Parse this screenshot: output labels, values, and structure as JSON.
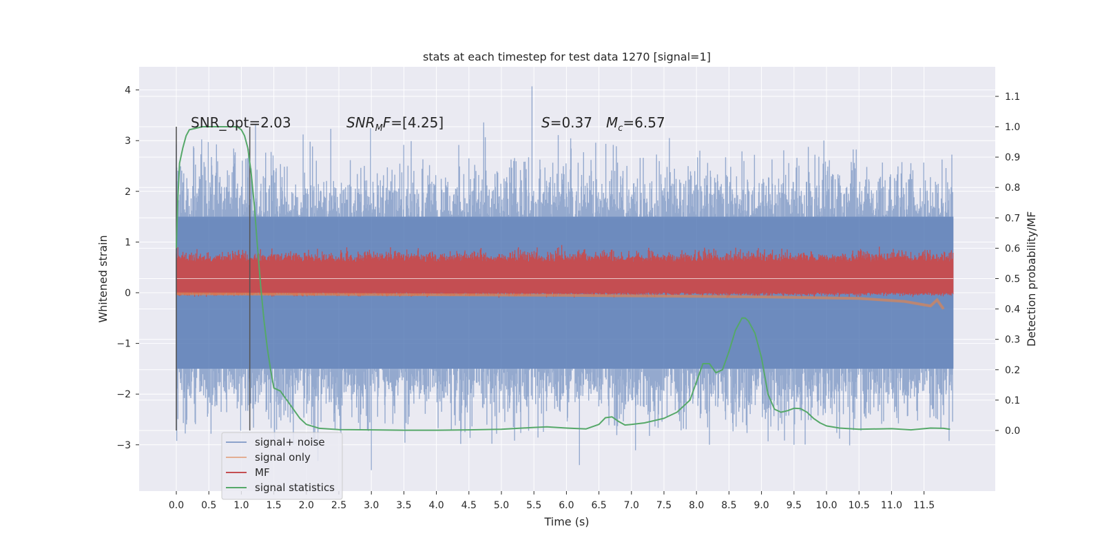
{
  "chart_data": {
    "type": "line",
    "title": "stats at each timestep for test data 1270 [signal=1]",
    "xlabel": "Time (s)",
    "ylabel_left": "Whitened strain",
    "ylabel_right": "Detection probability/MF",
    "xlim": [
      -0.5,
      12.7
    ],
    "ylim_left": [
      -3.9,
      4.4
    ],
    "ylim_right": [
      -0.2,
      1.15
    ],
    "x_ticks": [
      "0.0",
      "0.5",
      "1.0",
      "1.5",
      "2.0",
      "2.5",
      "3.0",
      "3.5",
      "4.0",
      "4.5",
      "5.0",
      "5.5",
      "6.0",
      "6.5",
      "7.0",
      "7.5",
      "8.0",
      "8.5",
      "9.0",
      "9.5",
      "10.0",
      "10.5",
      "11.0",
      "11.5"
    ],
    "y_ticks_left": [
      "4",
      "3",
      "2",
      "1",
      "0",
      "−1",
      "−2",
      "−3"
    ],
    "y_ticks_right": [
      "1.1",
      "1.0",
      "0.9",
      "0.8",
      "0.7",
      "0.6",
      "0.5",
      "0.4",
      "0.3",
      "0.2",
      "0.1",
      "0.0"
    ],
    "grid": true,
    "legend_position": "lower-left",
    "annotations": {
      "snr_opt": "SNR_opt=2.03",
      "snr_mf_prefix": "SNR",
      "snr_mf_sub": "M",
      "snr_mf_suffix": "F",
      "snr_mf_value": "=[4.25]",
      "s_label": "S",
      "s_value": "=0.37",
      "mc_label": "M",
      "mc_sub": "c",
      "mc_value": "=6.57"
    },
    "vertical_lines_x": [
      0.0,
      1.13
    ],
    "series": [
      {
        "name": "signal+ noise",
        "color": "#4c72b0",
        "axis": "left",
        "x_range": [
          0.0,
          11.95
        ],
        "band_core": [
          -1.5,
          1.5
        ],
        "notable_peaks": [
          [
            5.47,
            4.07
          ],
          [
            0.02,
            2.2
          ],
          [
            6.2,
            -3.4
          ],
          [
            3.0,
            -3.5
          ],
          [
            9.5,
            -3.0
          ],
          [
            8.2,
            -3.0
          ]
        ]
      },
      {
        "name": "signal only",
        "color": "#dd8452",
        "axis": "right",
        "x": [
          0.0,
          6.0,
          9.0,
          10.5,
          11.2,
          11.6,
          11.7,
          11.8
        ],
        "values": [
          0.45,
          0.445,
          0.44,
          0.435,
          0.425,
          0.41,
          0.43,
          0.4
        ]
      },
      {
        "name": "MF",
        "color": "#c44e52",
        "axis": "right",
        "x_range": [
          0.0,
          11.95
        ],
        "baseline": 0.5,
        "band": [
          0.455,
          0.585
        ]
      },
      {
        "name": "signal statistics",
        "color": "#55a868",
        "axis": "right",
        "x": [
          0.0,
          0.02,
          0.05,
          0.1,
          0.15,
          0.2,
          0.4,
          0.6,
          0.8,
          0.9,
          0.95,
          1.0,
          1.05,
          1.1,
          1.15,
          1.2,
          1.25,
          1.3,
          1.35,
          1.4,
          1.45,
          1.5,
          1.6,
          1.7,
          1.8,
          1.9,
          2.0,
          2.2,
          2.5,
          3.0,
          3.5,
          4.0,
          4.5,
          5.0,
          5.5,
          5.7,
          6.0,
          6.3,
          6.5,
          6.6,
          6.7,
          6.8,
          6.9,
          7.0,
          7.2,
          7.5,
          7.7,
          7.9,
          8.0,
          8.1,
          8.2,
          8.3,
          8.4,
          8.5,
          8.6,
          8.7,
          8.75,
          8.8,
          8.9,
          9.0,
          9.1,
          9.2,
          9.3,
          9.4,
          9.5,
          9.6,
          9.7,
          9.8,
          9.9,
          10.0,
          10.2,
          10.5,
          11.0,
          11.3,
          11.6,
          11.8,
          11.9
        ],
        "values": [
          0.6,
          0.75,
          0.88,
          0.93,
          0.97,
          0.99,
          1.0,
          1.0,
          1.0,
          1.0,
          0.998,
          0.99,
          0.97,
          0.93,
          0.85,
          0.74,
          0.6,
          0.47,
          0.36,
          0.27,
          0.2,
          0.14,
          0.13,
          0.1,
          0.07,
          0.04,
          0.02,
          0.007,
          0.003,
          0.002,
          0.001,
          0.001,
          0.002,
          0.004,
          0.01,
          0.012,
          0.008,
          0.005,
          0.02,
          0.042,
          0.045,
          0.03,
          0.018,
          0.02,
          0.025,
          0.04,
          0.06,
          0.1,
          0.16,
          0.22,
          0.22,
          0.19,
          0.2,
          0.26,
          0.33,
          0.37,
          0.37,
          0.36,
          0.32,
          0.24,
          0.12,
          0.07,
          0.06,
          0.065,
          0.073,
          0.072,
          0.06,
          0.04,
          0.025,
          0.015,
          0.008,
          0.004,
          0.006,
          0.002,
          0.008,
          0.007,
          0.004
        ]
      }
    ]
  }
}
